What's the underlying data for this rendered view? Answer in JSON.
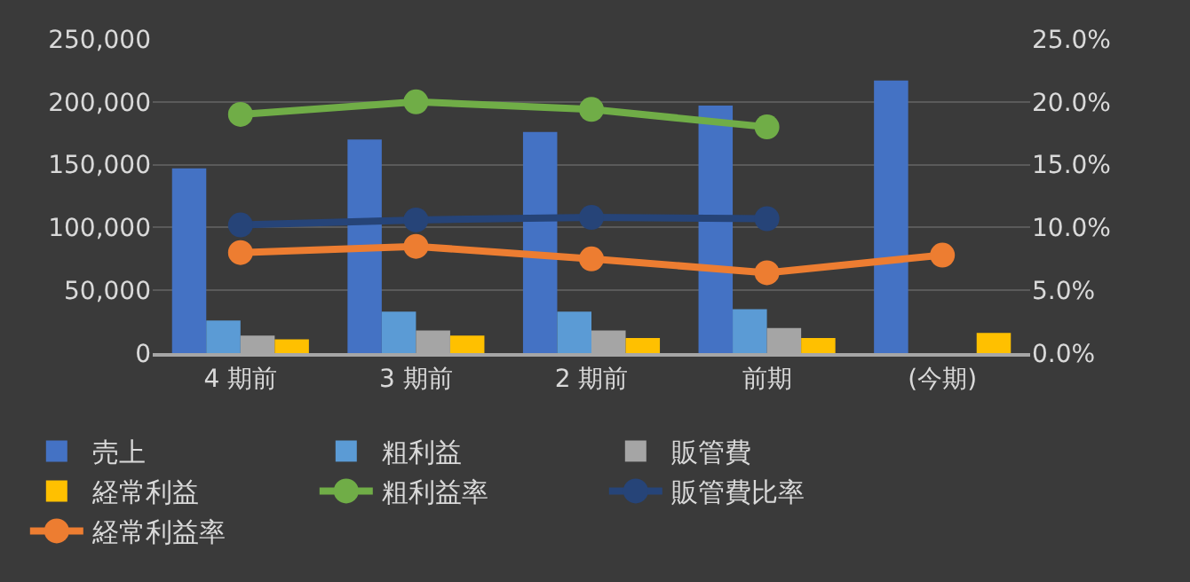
{
  "chart_data": {
    "type": "bar",
    "categories": [
      "4 期前",
      "3 期前",
      "2 期前",
      "前期",
      "(今期)"
    ],
    "series": [
      {
        "name": "売上",
        "color": "#4472c4",
        "values": [
          147000,
          170000,
          176000,
          197000,
          217000
        ]
      },
      {
        "name": "粗利益",
        "color": "#5b9bd5",
        "values": [
          26000,
          33000,
          33000,
          35000,
          null
        ]
      },
      {
        "name": "販管費",
        "color": "#a5a5a5",
        "values": [
          14000,
          18000,
          18000,
          20000,
          null
        ]
      },
      {
        "name": "経常利益",
        "color": "#ffc000",
        "values": [
          11000,
          14000,
          12000,
          12000,
          16000
        ]
      },
      {
        "name": "粗利益率",
        "type": "line",
        "axis": "y2",
        "color": "#70ad47",
        "values": [
          19.0,
          20.0,
          19.4,
          18.0,
          null
        ]
      },
      {
        "name": "販管費比率",
        "type": "line",
        "axis": "y2",
        "color": "#264478",
        "values": [
          10.2,
          10.6,
          10.8,
          10.7,
          null
        ]
      },
      {
        "name": "経常利益率",
        "type": "line",
        "axis": "y2",
        "color": "#ed7d31",
        "values": [
          8.0,
          8.5,
          7.5,
          6.4,
          7.8
        ]
      }
    ],
    "ylim": [
      0,
      250000
    ],
    "yticks": [
      {
        "value": 0,
        "label": "0"
      },
      {
        "value": 50000,
        "label": "50,000"
      },
      {
        "value": 100000,
        "label": "100,000"
      },
      {
        "value": 150000,
        "label": "150,000"
      },
      {
        "value": 200000,
        "label": "200,000"
      },
      {
        "value": 250000,
        "label": "250,000"
      }
    ],
    "y2lim": [
      0,
      25
    ],
    "y2ticks": [
      {
        "value": 0,
        "label": "0.0%"
      },
      {
        "value": 5,
        "label": "5.0%"
      },
      {
        "value": 10,
        "label": "10.0%"
      },
      {
        "value": 15,
        "label": "15.0%"
      },
      {
        "value": 20,
        "label": "20.0%"
      },
      {
        "value": 25,
        "label": "25.0%"
      }
    ],
    "grid": "y",
    "legend": "bottom",
    "marker": "circle",
    "line_style": "solid"
  }
}
